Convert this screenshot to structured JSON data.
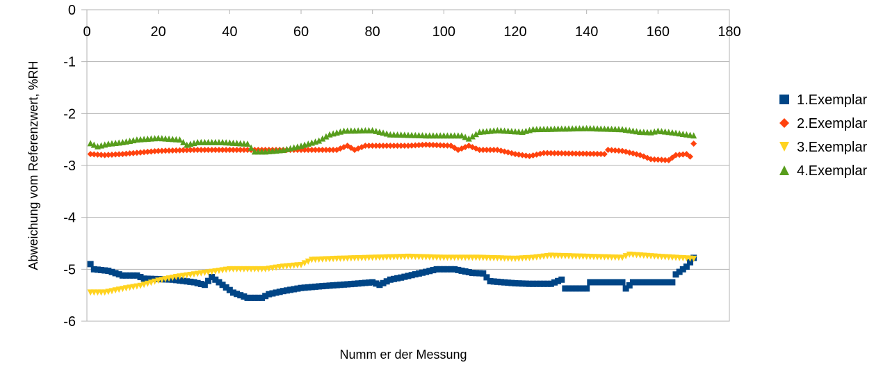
{
  "chart_data": {
    "type": "scatter",
    "title": "",
    "xlabel": "Numm er der Messung",
    "ylabel": "Abweichung vom Referenzwert, %RH",
    "xlim": [
      0,
      180
    ],
    "ylim": [
      -6,
      0
    ],
    "x_ticks": [
      "0",
      "20",
      "40",
      "60",
      "80",
      "100",
      "120",
      "140",
      "160",
      "180"
    ],
    "y_ticks": [
      "0",
      "-1",
      "-2",
      "-3",
      "-4",
      "-5",
      "-6"
    ],
    "x_tick_values": [
      0,
      20,
      40,
      60,
      80,
      100,
      120,
      140,
      160,
      180
    ],
    "y_tick_values": [
      0,
      -1,
      -2,
      -3,
      -4,
      -5,
      -6
    ],
    "x_axis_position": "top",
    "grid": "horizontal",
    "legend_position": "right",
    "series": [
      {
        "name": "1.Exemplar",
        "color": "#004586",
        "marker": "square",
        "keypoints": [
          [
            1,
            -4.9
          ],
          [
            2,
            -5.0
          ],
          [
            6,
            -5.03
          ],
          [
            10,
            -5.12
          ],
          [
            14,
            -5.12
          ],
          [
            16,
            -5.18
          ],
          [
            24,
            -5.2
          ],
          [
            30,
            -5.25
          ],
          [
            33,
            -5.3
          ],
          [
            35,
            -5.15
          ],
          [
            38,
            -5.3
          ],
          [
            41,
            -5.45
          ],
          [
            45,
            -5.55
          ],
          [
            49,
            -5.55
          ],
          [
            51,
            -5.48
          ],
          [
            55,
            -5.42
          ],
          [
            60,
            -5.36
          ],
          [
            65,
            -5.33
          ],
          [
            75,
            -5.28
          ],
          [
            80,
            -5.25
          ],
          [
            82,
            -5.3
          ],
          [
            85,
            -5.2
          ],
          [
            88,
            -5.16
          ],
          [
            95,
            -5.05
          ],
          [
            98,
            -5.0
          ],
          [
            103,
            -5.0
          ],
          [
            108,
            -5.07
          ],
          [
            111,
            -5.08
          ],
          [
            113,
            -5.23
          ],
          [
            120,
            -5.27
          ],
          [
            124,
            -5.28
          ],
          [
            130,
            -5.28
          ],
          [
            133,
            -5.2
          ],
          [
            134,
            -5.37
          ],
          [
            140,
            -5.37
          ],
          [
            141,
            -5.25
          ],
          [
            150,
            -5.25
          ],
          [
            151,
            -5.37
          ],
          [
            153,
            -5.25
          ],
          [
            164,
            -5.25
          ],
          [
            165,
            -5.1
          ],
          [
            168,
            -4.95
          ],
          [
            170,
            -4.78
          ]
        ]
      },
      {
        "name": "2.Exemplar",
        "color": "#ff420e",
        "marker": "diamond",
        "keypoints": [
          [
            1,
            -2.78
          ],
          [
            5,
            -2.8
          ],
          [
            10,
            -2.78
          ],
          [
            15,
            -2.75
          ],
          [
            20,
            -2.72
          ],
          [
            30,
            -2.7
          ],
          [
            40,
            -2.7
          ],
          [
            50,
            -2.7
          ],
          [
            60,
            -2.7
          ],
          [
            70,
            -2.7
          ],
          [
            73,
            -2.62
          ],
          [
            75,
            -2.7
          ],
          [
            78,
            -2.62
          ],
          [
            90,
            -2.62
          ],
          [
            95,
            -2.6
          ],
          [
            102,
            -2.62
          ],
          [
            104,
            -2.7
          ],
          [
            107,
            -2.62
          ],
          [
            110,
            -2.7
          ],
          [
            115,
            -2.7
          ],
          [
            120,
            -2.78
          ],
          [
            124,
            -2.82
          ],
          [
            128,
            -2.76
          ],
          [
            145,
            -2.78
          ],
          [
            146,
            -2.7
          ],
          [
            150,
            -2.72
          ],
          [
            155,
            -2.8
          ],
          [
            158,
            -2.88
          ],
          [
            163,
            -2.9
          ],
          [
            165,
            -2.8
          ],
          [
            168,
            -2.78
          ],
          [
            169,
            -2.83
          ],
          [
            170,
            -2.58
          ]
        ]
      },
      {
        "name": "3.Exemplar",
        "color": "#ffd320",
        "marker": "triangle-down",
        "keypoints": [
          [
            1,
            -5.45
          ],
          [
            5,
            -5.45
          ],
          [
            10,
            -5.38
          ],
          [
            15,
            -5.32
          ],
          [
            20,
            -5.22
          ],
          [
            25,
            -5.15
          ],
          [
            30,
            -5.1
          ],
          [
            35,
            -5.05
          ],
          [
            40,
            -5.0
          ],
          [
            45,
            -5.0
          ],
          [
            50,
            -5.0
          ],
          [
            55,
            -4.95
          ],
          [
            60,
            -4.92
          ],
          [
            63,
            -4.82
          ],
          [
            70,
            -4.8
          ],
          [
            80,
            -4.78
          ],
          [
            90,
            -4.76
          ],
          [
            100,
            -4.78
          ],
          [
            110,
            -4.78
          ],
          [
            120,
            -4.8
          ],
          [
            125,
            -4.78
          ],
          [
            130,
            -4.74
          ],
          [
            140,
            -4.76
          ],
          [
            150,
            -4.78
          ],
          [
            152,
            -4.72
          ],
          [
            160,
            -4.76
          ],
          [
            165,
            -4.78
          ],
          [
            170,
            -4.8
          ]
        ]
      },
      {
        "name": "4.Exemplar",
        "color": "#579d1c",
        "marker": "triangle-up",
        "keypoints": [
          [
            1,
            -2.57
          ],
          [
            3,
            -2.63
          ],
          [
            6,
            -2.58
          ],
          [
            10,
            -2.55
          ],
          [
            14,
            -2.5
          ],
          [
            20,
            -2.47
          ],
          [
            26,
            -2.5
          ],
          [
            28,
            -2.6
          ],
          [
            31,
            -2.55
          ],
          [
            38,
            -2.55
          ],
          [
            45,
            -2.58
          ],
          [
            47,
            -2.73
          ],
          [
            50,
            -2.73
          ],
          [
            55,
            -2.7
          ],
          [
            60,
            -2.62
          ],
          [
            65,
            -2.52
          ],
          [
            68,
            -2.4
          ],
          [
            72,
            -2.33
          ],
          [
            80,
            -2.32
          ],
          [
            85,
            -2.4
          ],
          [
            95,
            -2.42
          ],
          [
            105,
            -2.42
          ],
          [
            107,
            -2.48
          ],
          [
            110,
            -2.35
          ],
          [
            115,
            -2.32
          ],
          [
            122,
            -2.35
          ],
          [
            125,
            -2.3
          ],
          [
            140,
            -2.28
          ],
          [
            150,
            -2.3
          ],
          [
            155,
            -2.35
          ],
          [
            158,
            -2.36
          ],
          [
            160,
            -2.33
          ],
          [
            165,
            -2.37
          ],
          [
            170,
            -2.42
          ]
        ]
      }
    ]
  }
}
